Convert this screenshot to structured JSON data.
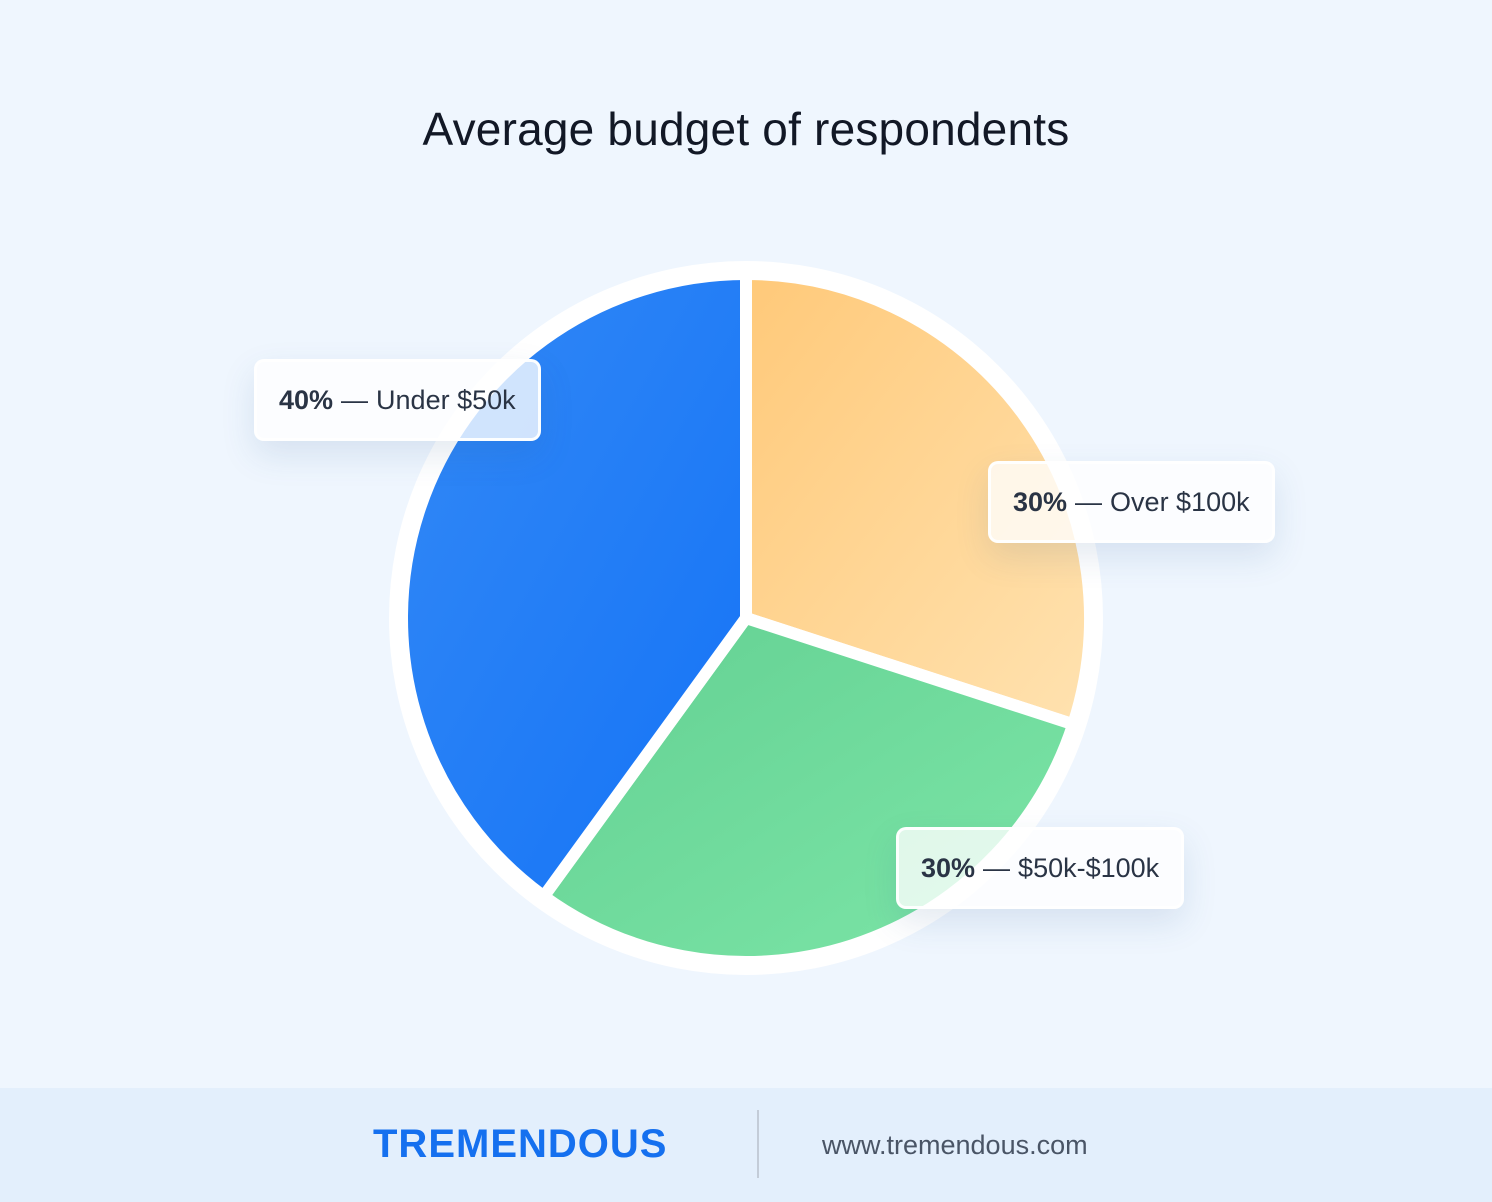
{
  "chart_data": {
    "type": "pie",
    "title": "Average budget of respondents",
    "slices": [
      {
        "label": "Over $100k",
        "pct_text": "30%",
        "value": 30,
        "color_start": "#ffc979",
        "color_end": "#ffe2b0"
      },
      {
        "label": "$50k-$100k",
        "pct_text": "30%",
        "value": 30,
        "color_start": "#63d092",
        "color_end": "#7de6a8"
      },
      {
        "label": "Under $50k",
        "pct_text": "40%",
        "value": 40,
        "color_start": "#3389f5",
        "color_end": "#1473f7"
      }
    ],
    "label_separator": "—"
  },
  "footer": {
    "brand": "TREMENDOUS",
    "url": "www.tremendous.com"
  },
  "colors": {
    "background": "#eff6fe",
    "footer_background": "#e3effc",
    "brand": "#1570ef"
  }
}
